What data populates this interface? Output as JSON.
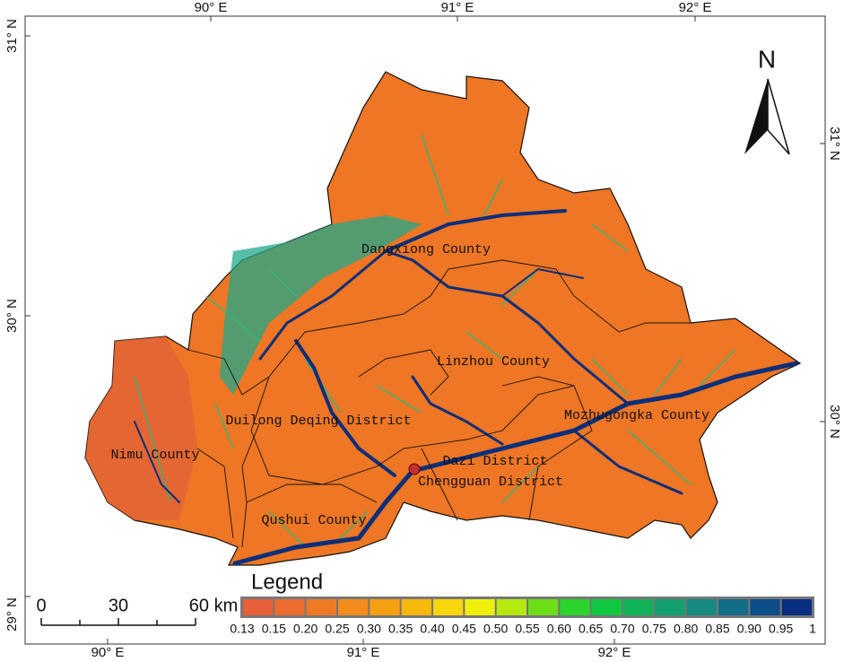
{
  "map": {
    "north": "N",
    "top_ticks": [
      "90° E",
      "91° E",
      "92° E"
    ],
    "bottom_ticks": [
      "90° E",
      "91° E",
      "92° E"
    ],
    "left_ticks": [
      "31° N",
      "30° N",
      "29° N"
    ],
    "right_ticks": [
      "31° N",
      "30° N"
    ],
    "regions": [
      "Dangxiong County",
      "Linzhou County",
      "Mozhugongka County",
      "Duilong Deqing District",
      "Nimu County",
      "Dazi District",
      "Chengguan District",
      "Qushui County"
    ],
    "scale": [
      "0",
      "30",
      "60 km"
    ],
    "legend": {
      "title": "Legend",
      "colors": [
        "#e8603a",
        "#ec6c30",
        "#ee7a26",
        "#f28c1c",
        "#f5a012",
        "#f8b80c",
        "#f8d60a",
        "#eef00a",
        "#b4ea10",
        "#6cde18",
        "#2ad42a",
        "#10c840",
        "#12b45a",
        "#14a070",
        "#168a80",
        "#126e88",
        "#0e4e88",
        "#0a2e80"
      ],
      "labels": [
        "0.13",
        "0.15",
        "0.20",
        "0.25",
        "0.30",
        "0.35",
        "0.40",
        "0.45",
        "0.50",
        "0.55",
        "0.60",
        "0.65",
        "0.70",
        "0.75",
        "0.80",
        "0.85",
        "0.90",
        "0.95",
        "1"
      ]
    }
  }
}
